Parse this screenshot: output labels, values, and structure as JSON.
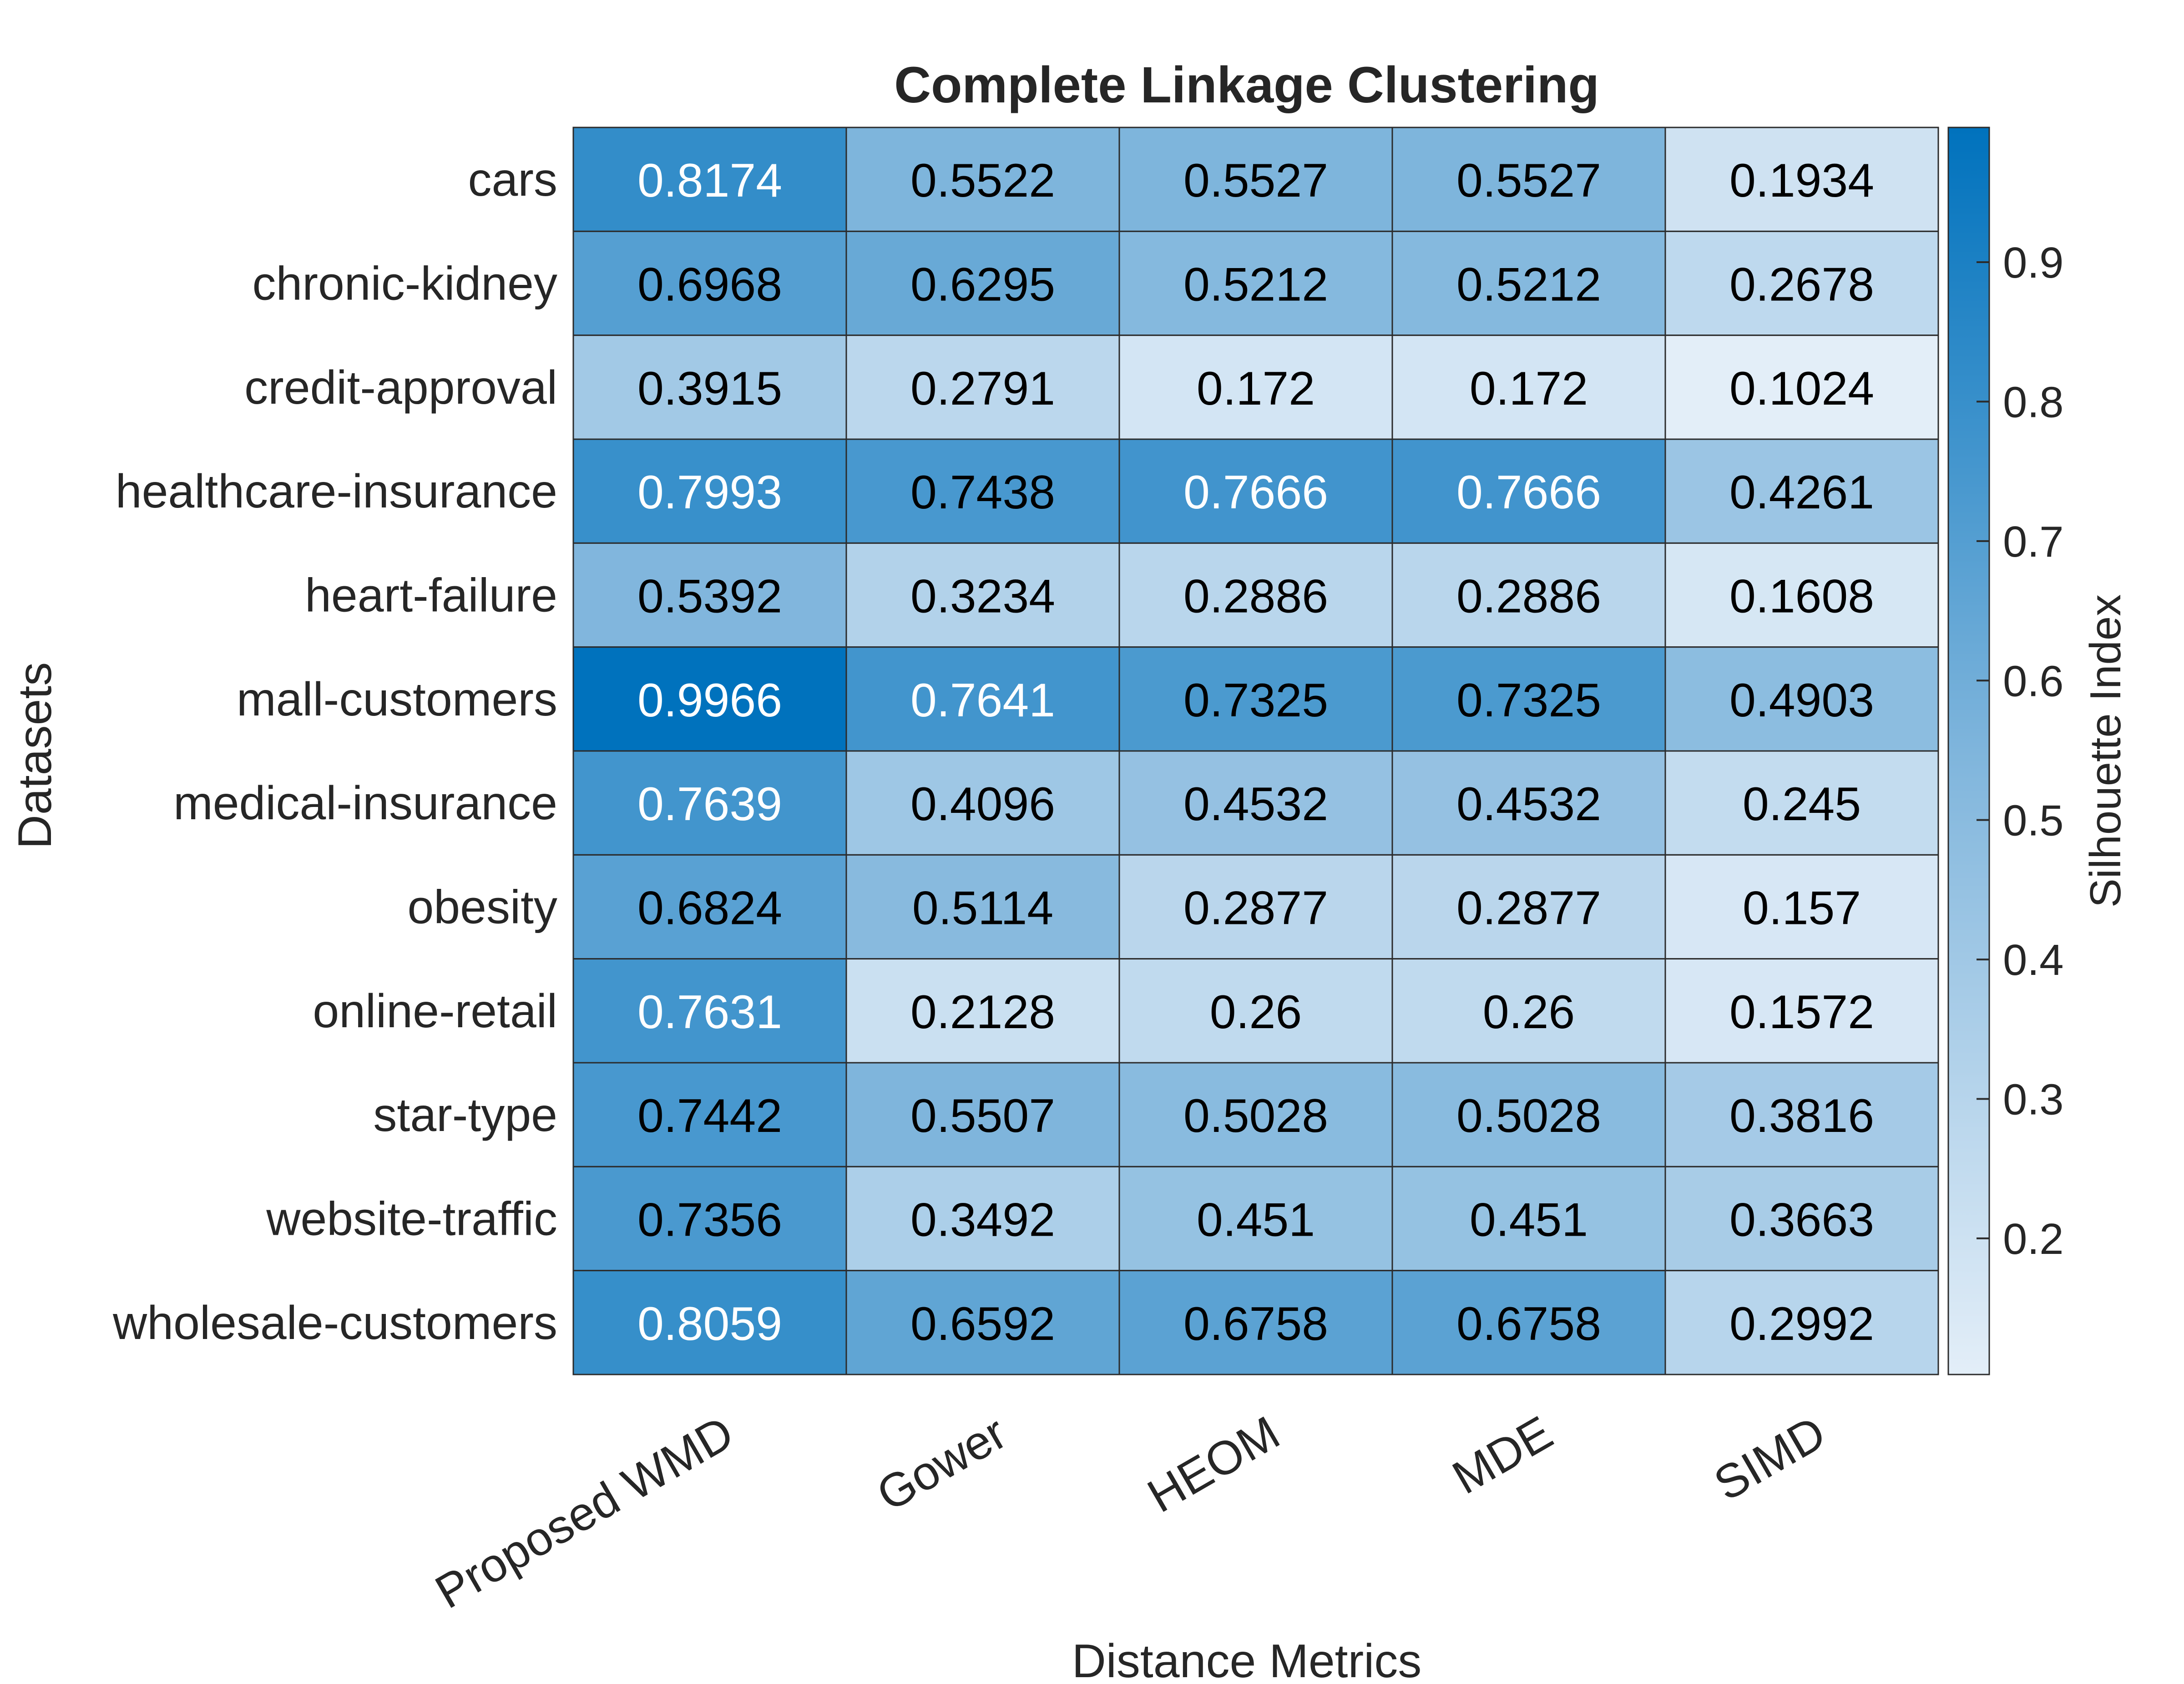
{
  "chart_data": {
    "type": "heatmap",
    "title": "Complete Linkage Clustering",
    "xlabel": "Distance Metrics",
    "ylabel": "Datasets",
    "colorbar_label": "Silhouette Index",
    "x_categories": [
      "Proposed WMD",
      "Gower",
      "HEOM",
      "MDE",
      "SIMD"
    ],
    "y_categories": [
      "cars",
      "chronic-kidney",
      "credit-approval",
      "healthcare-insurance",
      "heart-failure",
      "mall-customers",
      "medical-insurance",
      "obesity",
      "online-retail",
      "star-type",
      "website-traffic",
      "wholesale-customers"
    ],
    "values": [
      [
        "0.8174",
        "0.5522",
        "0.5527",
        "0.5527",
        "0.1934"
      ],
      [
        "0.6968",
        "0.6295",
        "0.5212",
        "0.5212",
        "0.2678"
      ],
      [
        "0.3915",
        "0.2791",
        "0.172",
        "0.172",
        "0.1024"
      ],
      [
        "0.7993",
        "0.7438",
        "0.7666",
        "0.7666",
        "0.4261"
      ],
      [
        "0.5392",
        "0.3234",
        "0.2886",
        "0.2886",
        "0.1608"
      ],
      [
        "0.9966",
        "0.7641",
        "0.7325",
        "0.7325",
        "0.4903"
      ],
      [
        "0.7639",
        "0.4096",
        "0.4532",
        "0.4532",
        "0.245"
      ],
      [
        "0.6824",
        "0.5114",
        "0.2877",
        "0.2877",
        "0.157"
      ],
      [
        "0.7631",
        "0.2128",
        "0.26",
        "0.26",
        "0.1572"
      ],
      [
        "0.7442",
        "0.5507",
        "0.5028",
        "0.5028",
        "0.3816"
      ],
      [
        "0.7356",
        "0.3492",
        "0.451",
        "0.451",
        "0.3663"
      ],
      [
        "0.8059",
        "0.6592",
        "0.6758",
        "0.6758",
        "0.2992"
      ]
    ],
    "color_range": [
      0.1024,
      0.9966
    ],
    "colorbar_ticks": [
      "0.2",
      "0.3",
      "0.4",
      "0.5",
      "0.6",
      "0.7",
      "0.8",
      "0.9"
    ],
    "colors": {
      "low": "#e3eef8",
      "mid": "#7fb5dc",
      "high": "#0072bd",
      "grid_line": "#2b2b2b",
      "text_dark": "#000000",
      "text_light": "#ffffff",
      "label": "#262626"
    }
  }
}
